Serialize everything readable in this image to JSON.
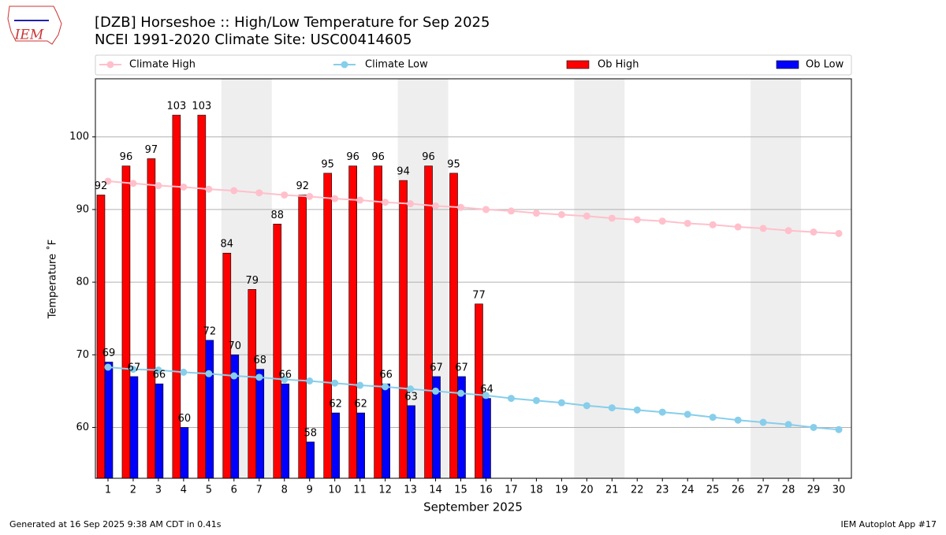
{
  "chart_data": {
    "type": "bar_line",
    "title": "[DZB] Horseshoe :: High/Low Temperature for Sep 2025",
    "subtitle": "NCEI 1991-2020 Climate Site: USC00414605",
    "logo_text": "IEM",
    "x_label": "September 2025",
    "y_label": "Temperature ˚F",
    "footer_left": "Generated at 16 Sep 2025 9:38 AM CDT in 0.41s",
    "footer_right": "IEM Autoplot App #17",
    "x": [
      1,
      2,
      3,
      4,
      5,
      6,
      7,
      8,
      9,
      10,
      11,
      12,
      13,
      14,
      15,
      16,
      17,
      18,
      19,
      20,
      21,
      22,
      23,
      24,
      25,
      26,
      27,
      28,
      29,
      30
    ],
    "xlim": [
      0.5,
      30.5
    ],
    "xticks": [
      1,
      2,
      3,
      4,
      5,
      6,
      7,
      8,
      9,
      10,
      11,
      12,
      13,
      14,
      15,
      16,
      17,
      18,
      19,
      20,
      21,
      22,
      23,
      24,
      25,
      26,
      27,
      28,
      29,
      30
    ],
    "ylim": [
      53,
      108
    ],
    "yticks": [
      60,
      70,
      80,
      90,
      100
    ],
    "grid": true,
    "series": [
      {
        "name": "Climate High",
        "kind": "line",
        "color": "#ffc0cb",
        "values": [
          93.9,
          93.6,
          93.3,
          93.1,
          92.8,
          92.6,
          92.3,
          92.0,
          91.8,
          91.5,
          91.3,
          91.0,
          90.8,
          90.5,
          90.3,
          90.0,
          89.8,
          89.5,
          89.3,
          89.1,
          88.8,
          88.6,
          88.4,
          88.1,
          87.9,
          87.6,
          87.4,
          87.1,
          86.9,
          86.7
        ]
      },
      {
        "name": "Climate Low",
        "kind": "line",
        "color": "#87ceeb",
        "values": [
          68.3,
          68.0,
          67.9,
          67.6,
          67.4,
          67.1,
          66.9,
          66.6,
          66.4,
          66.1,
          65.8,
          65.6,
          65.3,
          65.0,
          64.7,
          64.4,
          64.0,
          63.7,
          63.4,
          63.0,
          62.7,
          62.4,
          62.1,
          61.8,
          61.4,
          61.0,
          60.7,
          60.4,
          60.0,
          59.7
        ]
      },
      {
        "name": "Ob High",
        "kind": "bar",
        "color": "#ff0000",
        "values": [
          92,
          96,
          97,
          103,
          103,
          84,
          79,
          88,
          92,
          95,
          96,
          96,
          94,
          96,
          95,
          77,
          null,
          null,
          null,
          null,
          null,
          null,
          null,
          null,
          null,
          null,
          null,
          null,
          null,
          null
        ]
      },
      {
        "name": "Ob Low",
        "kind": "bar",
        "color": "#0000ff",
        "values": [
          69,
          67,
          66,
          60,
          72,
          70,
          68,
          66,
          58,
          62,
          62,
          66,
          63,
          67,
          67,
          64,
          null,
          null,
          null,
          null,
          null,
          null,
          null,
          null,
          null,
          null,
          null,
          null,
          null,
          null
        ]
      }
    ]
  }
}
